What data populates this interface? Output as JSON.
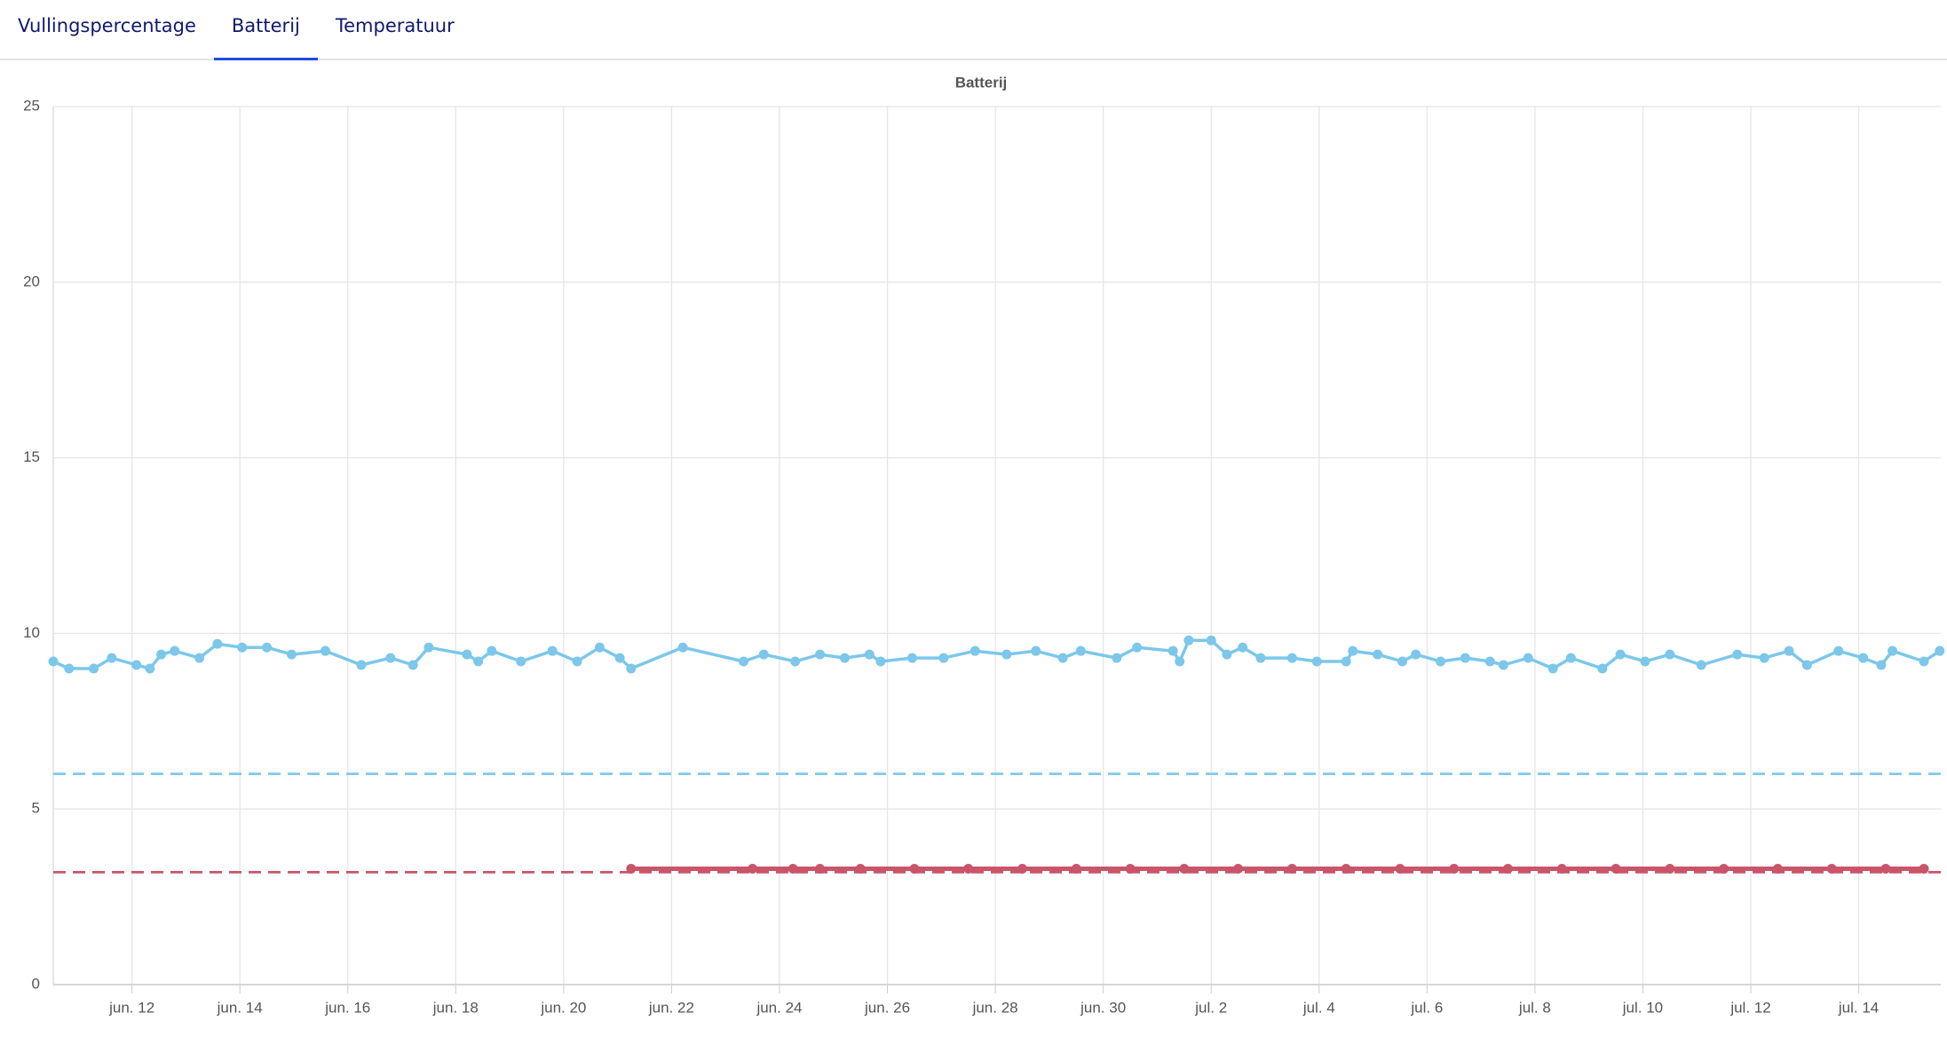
{
  "tabs": [
    "Vullingspercentage",
    "Batterij",
    "Temperatuur"
  ],
  "active_tab": 1,
  "chart_data": {
    "type": "line",
    "title": "Batterij",
    "xlim": [
      "06-10 13:00",
      "07-15 12:30"
    ],
    "xticks": [
      {
        "value": "06-12 00:00",
        "label": "jun. 12"
      },
      {
        "value": "06-14 00:00",
        "label": "jun. 14"
      },
      {
        "value": "06-16 00:00",
        "label": "jun. 16"
      },
      {
        "value": "06-18 00:00",
        "label": "jun. 18"
      },
      {
        "value": "06-20 00:00",
        "label": "jun. 20"
      },
      {
        "value": "06-22 00:00",
        "label": "jun. 22"
      },
      {
        "value": "06-24 00:00",
        "label": "jun. 24"
      },
      {
        "value": "06-26 00:00",
        "label": "jun. 26"
      },
      {
        "value": "06-28 00:00",
        "label": "jun. 28"
      },
      {
        "value": "06-30 00:00",
        "label": "jun. 30"
      },
      {
        "value": "07-02 00:00",
        "label": "jul. 2"
      },
      {
        "value": "07-04 00:00",
        "label": "jul. 4"
      },
      {
        "value": "07-06 00:00",
        "label": "jul. 6"
      },
      {
        "value": "07-08 00:00",
        "label": "jul. 8"
      },
      {
        "value": "07-10 00:00",
        "label": "jul. 10"
      },
      {
        "value": "07-12 00:00",
        "label": "jul. 12"
      },
      {
        "value": "07-14 00:00",
        "label": "jul. 14"
      }
    ],
    "ylim": [
      0,
      25
    ],
    "yticks": [
      0,
      5,
      10,
      15,
      20,
      25
    ],
    "grid": true,
    "reference_lines": [
      {
        "value": 6,
        "color": "#7ccaea"
      },
      {
        "value": 3.2,
        "color": "#c9556a"
      }
    ],
    "series": [
      {
        "color": "#7cc7ea",
        "x": [
          "06-10 13:00",
          "06-10 20:00",
          "06-11 07:00",
          "06-11 15:00",
          "06-12 02:00",
          "06-12 08:00",
          "06-12 13:00",
          "06-12 19:00",
          "06-13 06:00",
          "06-13 14:00",
          "06-14 01:00",
          "06-14 12:00",
          "06-14 23:00",
          "06-15 14:00",
          "06-16 06:00",
          "06-16 19:00",
          "06-17 05:00",
          "06-17 12:00",
          "06-18 05:00",
          "06-18 10:00",
          "06-18 16:00",
          "06-19 05:00",
          "06-19 19:00",
          "06-20 06:00",
          "06-20 16:00",
          "06-21 01:00",
          "06-21 06:00",
          "06-22 05:00",
          "06-23 08:00",
          "06-23 17:00",
          "06-24 07:00",
          "06-24 18:00",
          "06-25 05:00",
          "06-25 16:00",
          "06-25 21:00",
          "06-26 11:00",
          "06-27 01:00",
          "06-27 15:00",
          "06-28 05:00",
          "06-28 18:00",
          "06-29 06:00",
          "06-29 14:00",
          "06-30 06:00",
          "06-30 15:00",
          "07-01 07:00",
          "07-01 10:00",
          "07-01 14:00",
          "07-02 00:00",
          "07-02 07:00",
          "07-02 14:00",
          "07-02 22:00",
          "07-03 12:00",
          "07-03 23:00",
          "07-04 12:00",
          "07-04 15:00",
          "07-05 02:00",
          "07-05 13:00",
          "07-05 19:00",
          "07-06 06:00",
          "07-06 17:00",
          "07-07 04:00",
          "07-07 10:00",
          "07-07 21:00",
          "07-08 08:00",
          "07-08 16:00",
          "07-09 06:00",
          "07-09 14:00",
          "07-10 01:00",
          "07-10 12:00",
          "07-11 02:00",
          "07-11 18:00",
          "07-12 06:00",
          "07-12 17:00",
          "07-13 01:00",
          "07-13 15:00",
          "07-14 02:00",
          "07-14 10:00",
          "07-14 15:00",
          "07-15 05:00",
          "07-15 12:00"
        ],
        "values": [
          9.2,
          9.0,
          9.0,
          9.3,
          9.1,
          9.0,
          9.4,
          9.5,
          9.3,
          9.7,
          9.6,
          9.6,
          9.4,
          9.5,
          9.1,
          9.3,
          9.1,
          9.6,
          9.4,
          9.2,
          9.5,
          9.2,
          9.5,
          9.2,
          9.6,
          9.3,
          9.0,
          9.6,
          9.2,
          9.4,
          9.2,
          9.4,
          9.3,
          9.4,
          9.2,
          9.3,
          9.3,
          9.5,
          9.4,
          9.5,
          9.3,
          9.5,
          9.3,
          9.6,
          9.5,
          9.2,
          9.8,
          9.8,
          9.4,
          9.6,
          9.3,
          9.3,
          9.2,
          9.2,
          9.5,
          9.4,
          9.2,
          9.4,
          9.2,
          9.3,
          9.2,
          9.1,
          9.3,
          9.0,
          9.3,
          9.0,
          9.4,
          9.2,
          9.4,
          9.1,
          9.4,
          9.3,
          9.5,
          9.1,
          9.5,
          9.3,
          9.1,
          9.5,
          9.2,
          9.5
        ]
      },
      {
        "color": "#c9556a",
        "x": [
          "06-21 06:00",
          "06-23 12:00",
          "06-24 06:00",
          "06-24 18:00",
          "06-25 12:00",
          "06-26 12:00",
          "06-27 12:00",
          "06-28 12:00",
          "06-29 12:00",
          "06-30 12:00",
          "07-01 12:00",
          "07-02 12:00",
          "07-03 12:00",
          "07-04 12:00",
          "07-05 12:00",
          "07-06 12:00",
          "07-07 12:00",
          "07-08 12:00",
          "07-09 12:00",
          "07-10 12:00",
          "07-11 12:00",
          "07-12 12:00",
          "07-13 12:00",
          "07-14 12:00",
          "07-15 05:00"
        ],
        "values": [
          3.3,
          3.3,
          3.3,
          3.3,
          3.3,
          3.3,
          3.3,
          3.3,
          3.3,
          3.3,
          3.3,
          3.3,
          3.3,
          3.3,
          3.3,
          3.3,
          3.3,
          3.3,
          3.3,
          3.3,
          3.3,
          3.3,
          3.3,
          3.3,
          3.3
        ]
      }
    ]
  }
}
